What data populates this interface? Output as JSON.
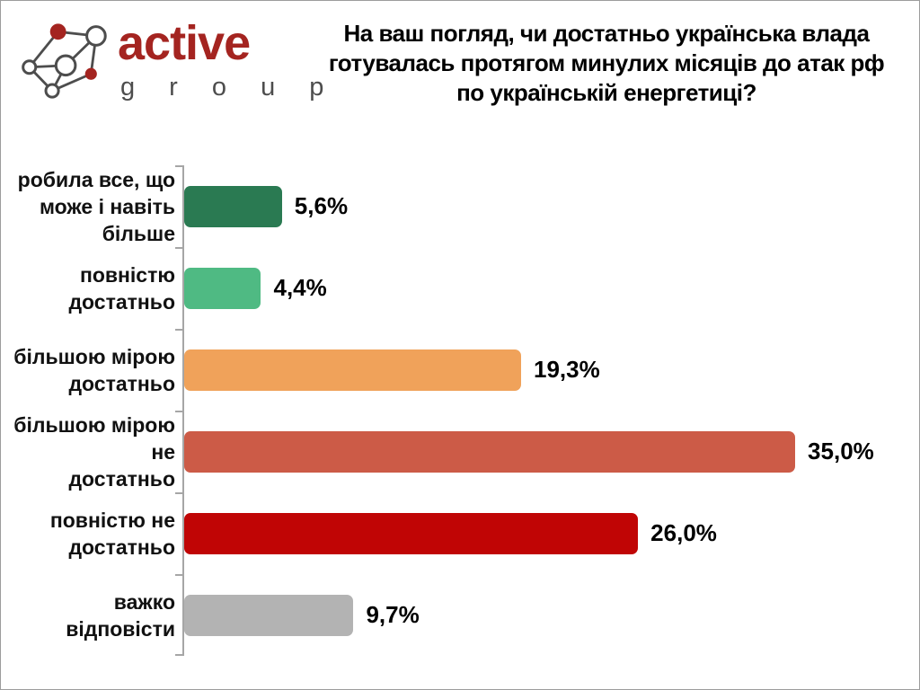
{
  "logo": {
    "name": "Active Group",
    "text_primary": "active",
    "text_secondary": "g r o u p",
    "accent_color": "#A42420",
    "line_color": "#4D4D4D"
  },
  "header": {
    "title_lines": [
      "На ваш погляд, чи достатньо українська влада",
      "готувалась протягом минулих місяців до атак рф",
      "по українській енергетиці?"
    ]
  },
  "chart_data": {
    "type": "bar",
    "orientation": "horizontal",
    "title": "На ваш погляд, чи достатньо українська влада готувалась протягом минулих місяців до атак рф по українській енергетиці?",
    "categories": [
      "робила все, що\nможе і навіть більше",
      "повністю достатньо",
      "більшою мірою\nдостатньо",
      "більшою мірою не\nдостатньо",
      "повністю не\nдостатньо",
      "важко відповісти"
    ],
    "values": [
      5.6,
      4.4,
      19.3,
      35.0,
      26.0,
      9.7
    ],
    "value_labels": [
      "5,6%",
      "4,4%",
      "19,3%",
      "35,0%",
      "26,0%",
      "9,7%"
    ],
    "colors": [
      "#2A7A52",
      "#4FBA83",
      "#F0A25A",
      "#CC5B47",
      "#C00505",
      "#B3B3B3"
    ],
    "unit": "%",
    "xlim": [
      0,
      40
    ],
    "grid": false,
    "legend": "none",
    "axis_color": "#A6A6A6"
  }
}
